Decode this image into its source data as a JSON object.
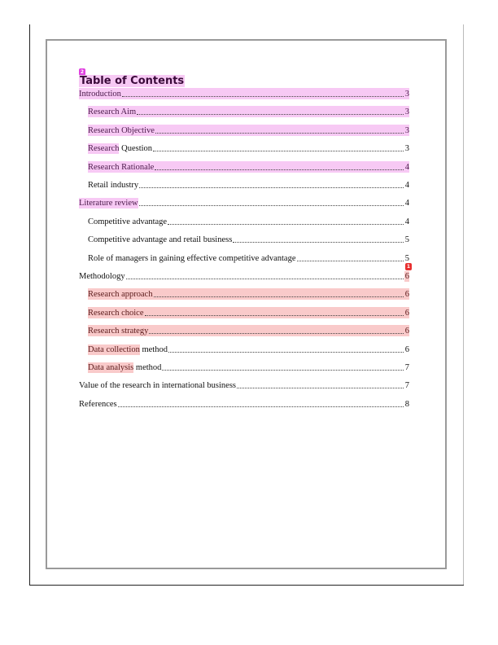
{
  "badges": {
    "title_comment": "2",
    "methodology_comment": "1"
  },
  "colors": {
    "pink_highlight": "#f7c9f4",
    "red_highlight": "#f9caca"
  },
  "toc": {
    "heading": "Table of Contents",
    "entries": [
      {
        "level": 1,
        "hl_text": "Introduction",
        "rest": "",
        "page": "3",
        "highlight": "full-pink"
      },
      {
        "level": 2,
        "hl_text": "Research Aim",
        "rest": "",
        "page": "3",
        "highlight": "full-pink"
      },
      {
        "level": 2,
        "hl_text": "Research Objective",
        "rest": "",
        "page": "3",
        "highlight": "full-pink"
      },
      {
        "level": 2,
        "hl_text": "Research",
        "rest": " Question",
        "page": "3",
        "highlight": "part-pink"
      },
      {
        "level": 2,
        "hl_text": "Research Rationale",
        "rest": "",
        "page": "4",
        "highlight": "full-pink"
      },
      {
        "level": 2,
        "hl_text": "",
        "rest": "Retail industry",
        "page": "4",
        "highlight": "none"
      },
      {
        "level": 1,
        "hl_text": "Literature review",
        "rest": "",
        "page": "4",
        "highlight": "part-pink"
      },
      {
        "level": 2,
        "hl_text": "",
        "rest": "Competitive advantage",
        "page": "4",
        "highlight": "none"
      },
      {
        "level": 2,
        "hl_text": "",
        "rest": "Competitive advantage and retail business",
        "page": "5",
        "highlight": "none"
      },
      {
        "level": 2,
        "hl_text": "",
        "rest": "Role of managers in gaining effective competitive advantage",
        "page": "5",
        "highlight": "none"
      },
      {
        "level": 1,
        "hl_text": "",
        "rest": "Methodology",
        "page": "6",
        "highlight": "page-red"
      },
      {
        "level": 2,
        "hl_text": "Research approach",
        "rest": "",
        "page": "6",
        "highlight": "full-red"
      },
      {
        "level": 2,
        "hl_text": "Research choice",
        "rest": "",
        "page": "6",
        "highlight": "full-red"
      },
      {
        "level": 2,
        "hl_text": "Research strategy",
        "rest": "",
        "page": "6",
        "highlight": "full-red"
      },
      {
        "level": 2,
        "hl_text": "Data collection",
        "rest": " method",
        "page": "6",
        "highlight": "part-red"
      },
      {
        "level": 2,
        "hl_text": "Data analysis",
        "rest": " method",
        "page": "7",
        "highlight": "part-red"
      },
      {
        "level": 1,
        "hl_text": "",
        "rest": "Value of the research in international business",
        "page": "7",
        "highlight": "none"
      },
      {
        "level": 1,
        "hl_text": "",
        "rest": "References",
        "page": "8",
        "highlight": "none"
      }
    ]
  }
}
